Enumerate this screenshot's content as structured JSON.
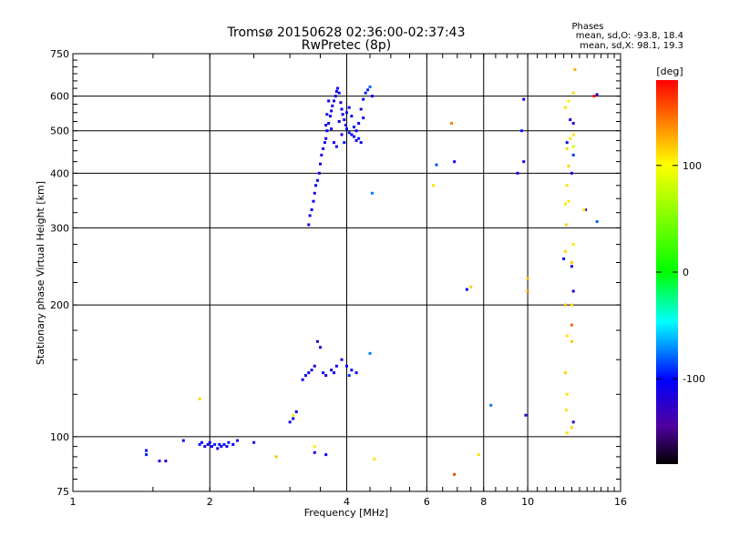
{
  "chart_data": {
    "type": "scatter",
    "title": "Tromsø 20150628 02:36:00-02:37:43",
    "subtitle": "RwPretec (8p)",
    "xlabel": "Frequency [MHz]",
    "ylabel": "Stationary phase Virtual Height [km]",
    "x_scale": "log",
    "y_scale": "log",
    "xlim": [
      1,
      16
    ],
    "ylim": [
      75,
      750
    ],
    "x_ticks": [
      1,
      2,
      4,
      6,
      8,
      10,
      16
    ],
    "x_tick_labels": [
      "1",
      "2",
      "4",
      "6",
      "8",
      "10",
      "16"
    ],
    "y_ticks": [
      75,
      100,
      200,
      300,
      400,
      500,
      600,
      750
    ],
    "y_tick_labels": [
      "75",
      "100",
      "200",
      "300",
      "400",
      "500",
      "600",
      "750"
    ],
    "grid": true,
    "stats": {
      "header": "Phases",
      "line1": "mean, sd,O: -93.8, 18.4",
      "line2": "mean, sd,X:  98.1, 19.3"
    },
    "colorbar": {
      "label": "[deg]",
      "range": [
        -180,
        180
      ],
      "ticks": [
        -100,
        0,
        100
      ],
      "tick_labels": [
        "-100",
        "0",
        "100"
      ]
    },
    "series": [
      {
        "points": [
          [
            1.45,
            93,
            -105
          ],
          [
            1.45,
            91,
            -95
          ],
          [
            1.55,
            88,
            -110
          ],
          [
            1.6,
            88,
            -115
          ],
          [
            1.75,
            98,
            -105
          ],
          [
            1.9,
            96,
            -95
          ],
          [
            1.92,
            97,
            -100
          ],
          [
            1.95,
            95,
            -112
          ],
          [
            1.98,
            96,
            -98
          ],
          [
            2.0,
            97,
            -106
          ],
          [
            2.02,
            95,
            -102
          ],
          [
            2.05,
            96,
            -95
          ],
          [
            2.08,
            94,
            -108
          ],
          [
            2.1,
            96,
            -100
          ],
          [
            2.12,
            95,
            -104
          ],
          [
            2.15,
            96,
            -96
          ],
          [
            2.18,
            95,
            -110
          ],
          [
            2.2,
            97,
            -99
          ],
          [
            2.25,
            96,
            -103
          ],
          [
            2.3,
            98,
            -112
          ],
          [
            2.5,
            97,
            -110
          ],
          [
            3.0,
            108,
            -110
          ],
          [
            3.05,
            110,
            -105
          ],
          [
            3.1,
            114,
            -108
          ],
          [
            3.2,
            135,
            -108
          ],
          [
            3.25,
            138,
            -102
          ],
          [
            3.3,
            140,
            -106
          ],
          [
            3.35,
            142,
            -112
          ],
          [
            3.4,
            145,
            -115
          ],
          [
            3.45,
            165,
            -118
          ],
          [
            3.5,
            160,
            -112
          ],
          [
            3.55,
            140,
            -104
          ],
          [
            3.6,
            138,
            -108
          ],
          [
            3.7,
            142,
            -110
          ],
          [
            3.75,
            140,
            -106
          ],
          [
            3.8,
            145,
            -102
          ],
          [
            3.9,
            150,
            -108
          ],
          [
            4.0,
            145,
            -100
          ],
          [
            4.05,
            138,
            -92
          ],
          [
            4.1,
            142,
            -98
          ],
          [
            4.2,
            140,
            -104
          ],
          [
            4.5,
            155,
            -75
          ],
          [
            3.4,
            92,
            -110
          ],
          [
            3.6,
            91,
            -105
          ],
          [
            3.3,
            305,
            -110
          ],
          [
            3.32,
            320,
            -108
          ],
          [
            3.35,
            330,
            -112
          ],
          [
            3.38,
            345,
            -105
          ],
          [
            3.4,
            360,
            -110
          ],
          [
            3.42,
            375,
            -102
          ],
          [
            3.45,
            385,
            -108
          ],
          [
            3.48,
            400,
            -115
          ],
          [
            3.5,
            420,
            -106
          ],
          [
            3.52,
            440,
            -112
          ],
          [
            3.55,
            455,
            -104
          ],
          [
            3.58,
            470,
            -108
          ],
          [
            3.6,
            480,
            -110
          ],
          [
            3.62,
            500,
            -102
          ],
          [
            3.65,
            520,
            -106
          ],
          [
            3.68,
            540,
            -112
          ],
          [
            3.7,
            555,
            -108
          ],
          [
            3.72,
            570,
            -104
          ],
          [
            3.75,
            585,
            -110
          ],
          [
            3.78,
            600,
            -115
          ],
          [
            3.8,
            615,
            -108
          ],
          [
            3.82,
            625,
            -102
          ],
          [
            3.85,
            610,
            -106
          ],
          [
            3.88,
            580,
            -110
          ],
          [
            3.9,
            560,
            -104
          ],
          [
            3.92,
            545,
            -108
          ],
          [
            3.95,
            530,
            -112
          ],
          [
            3.98,
            515,
            -106
          ],
          [
            4.0,
            505,
            -100
          ],
          [
            4.05,
            495,
            -95
          ],
          [
            4.1,
            490,
            -104
          ],
          [
            4.15,
            485,
            -108
          ],
          [
            4.2,
            475,
            -110
          ],
          [
            4.25,
            520,
            -102
          ],
          [
            4.3,
            560,
            -106
          ],
          [
            4.35,
            590,
            -100
          ],
          [
            4.4,
            610,
            -96
          ],
          [
            4.45,
            620,
            -92
          ],
          [
            4.5,
            630,
            -80
          ],
          [
            4.55,
            600,
            -104
          ],
          [
            4.55,
            360,
            -75
          ],
          [
            3.6,
            515,
            -110
          ],
          [
            3.62,
            545,
            -104
          ],
          [
            3.65,
            585,
            -108
          ],
          [
            3.7,
            505,
            -112
          ],
          [
            3.75,
            470,
            -106
          ],
          [
            3.8,
            460,
            -100
          ],
          [
            3.85,
            525,
            -108
          ],
          [
            3.9,
            490,
            -110
          ],
          [
            3.95,
            470,
            -98
          ],
          [
            4.0,
            550,
            -106
          ],
          [
            4.05,
            565,
            -102
          ],
          [
            4.1,
            540,
            -104
          ],
          [
            4.15,
            510,
            -110
          ],
          [
            4.2,
            500,
            -100
          ],
          [
            4.25,
            480,
            -95
          ],
          [
            4.3,
            470,
            -108
          ],
          [
            4.35,
            535,
            -102
          ],
          [
            6.3,
            418,
            -85
          ],
          [
            6.9,
            425,
            -115
          ],
          [
            7.35,
            217,
            -105
          ],
          [
            8.3,
            118,
            -75
          ],
          [
            9.5,
            400,
            -115
          ],
          [
            9.7,
            500,
            -95
          ],
          [
            9.8,
            590,
            -108
          ],
          [
            9.9,
            112,
            -120
          ],
          [
            9.8,
            425,
            -115
          ],
          [
            12.0,
            255,
            -110
          ],
          [
            12.2,
            470,
            -115
          ],
          [
            12.4,
            530,
            -112
          ],
          [
            12.5,
            400,
            -118
          ],
          [
            12.5,
            245,
            -108
          ],
          [
            12.6,
            215,
            -112
          ],
          [
            12.6,
            440,
            -90
          ],
          [
            12.6,
            520,
            -115
          ],
          [
            12.6,
            108,
            -120
          ],
          [
            13.4,
            330,
            -115
          ],
          [
            14.2,
            605,
            -115
          ],
          [
            14.2,
            310,
            -80
          ],
          [
            1.9,
            122,
            115
          ],
          [
            2.8,
            90,
            120
          ],
          [
            3.05,
            112,
            110
          ],
          [
            3.4,
            95,
            105
          ],
          [
            4.6,
            89,
            110
          ],
          [
            6.2,
            375,
            110
          ],
          [
            6.8,
            520,
            140
          ],
          [
            7.5,
            220,
            115
          ],
          [
            7.8,
            91,
            110
          ],
          [
            6.9,
            82,
            160
          ],
          [
            10.0,
            230,
            120
          ],
          [
            10.0,
            215,
            130
          ],
          [
            12.1,
            565,
            110
          ],
          [
            12.2,
            455,
            115
          ],
          [
            12.2,
            375,
            112
          ],
          [
            12.1,
            340,
            108
          ],
          [
            12.15,
            305,
            115
          ],
          [
            12.1,
            265,
            112
          ],
          [
            12.1,
            200,
            120
          ],
          [
            12.2,
            170,
            110
          ],
          [
            12.1,
            140,
            115
          ],
          [
            12.2,
            125,
            108
          ],
          [
            12.15,
            115,
            112
          ],
          [
            12.2,
            102,
            110
          ],
          [
            12.3,
            585,
            105
          ],
          [
            12.4,
            480,
            110
          ],
          [
            12.3,
            415,
            115
          ],
          [
            12.3,
            345,
            108
          ],
          [
            12.5,
            250,
            118
          ],
          [
            12.5,
            200,
            112
          ],
          [
            12.5,
            180,
            150
          ],
          [
            12.6,
            610,
            112
          ],
          [
            12.7,
            690,
            125
          ],
          [
            12.6,
            490,
            110
          ],
          [
            12.6,
            460,
            80
          ],
          [
            12.6,
            275,
            108
          ],
          [
            12.5,
            165,
            118
          ],
          [
            12.5,
            105,
            115
          ],
          [
            13.3,
            330,
            110
          ],
          [
            14.0,
            600,
            175
          ]
        ]
      }
    ]
  }
}
